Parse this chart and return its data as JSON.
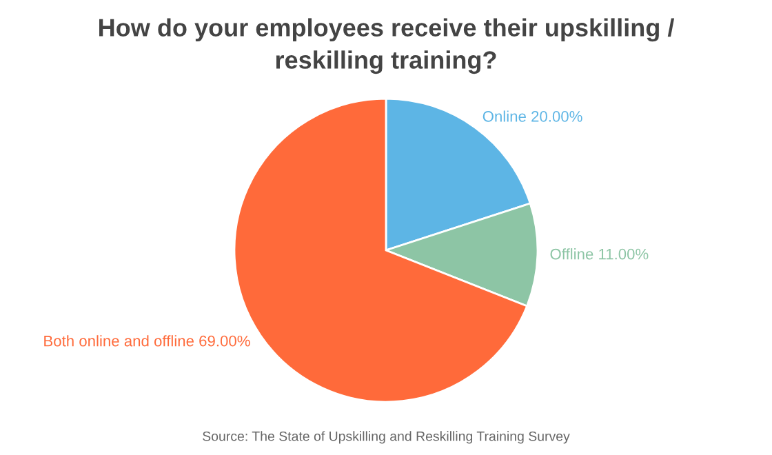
{
  "chart_data": {
    "type": "pie",
    "title": "How do your employees receive their upskilling /\nreskilling training?",
    "categories": [
      "Online",
      "Offline",
      "Both online and offline"
    ],
    "values": [
      20,
      11,
      69
    ],
    "value_labels": [
      "20.00%",
      "11.00%",
      "69.00%"
    ],
    "colors": [
      "#5db5e5",
      "#8dc5a5",
      "#ff6a3a"
    ],
    "annotations": [
      "Source: The State of Upskilling and Reskilling Training Survey"
    ],
    "legend": false
  }
}
